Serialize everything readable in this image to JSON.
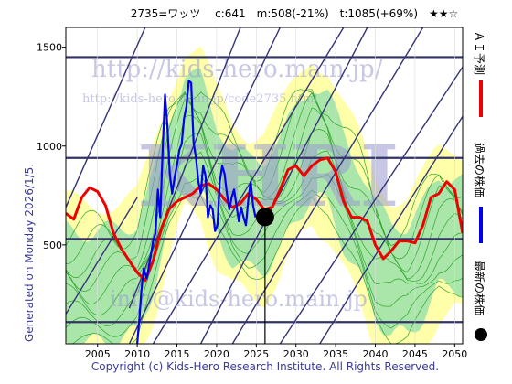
{
  "colors": {
    "plot_bg": "#ffffff",
    "band_yellow": "#ffffaa",
    "band_green": "#aae6aa",
    "band_line": "#2fa52f",
    "ai_forecast": "#ee0000",
    "past_price": "#0000ee",
    "latest_price": "#000000",
    "trend_line": "#333377",
    "grid_h": "#333366"
  },
  "chart_data": {
    "type": "line",
    "title": "2735=ワッツ　 c:641　m:508(-21%)　t:1085(+69%)　★★☆",
    "xlim": [
      2001,
      2051
    ],
    "ylim": [
      0,
      1600
    ],
    "x_ticks": [
      2005,
      2010,
      2015,
      2020,
      2025,
      2030,
      2035,
      2040,
      2045,
      2050
    ],
    "y_ticks": [
      500,
      1000,
      1500
    ],
    "hlines": [
      110,
      530,
      940,
      1450
    ],
    "legend": [
      {
        "label": "ＡＩ予測",
        "color": "#ee0000"
      },
      {
        "label": "過去の株価",
        "color": "#0000ee"
      },
      {
        "label": "最新の株価",
        "color": "#000000"
      }
    ],
    "latest": {
      "x": 2026.1,
      "y": 641
    },
    "ai_forecast": [
      [
        2001,
        660
      ],
      [
        2002,
        630
      ],
      [
        2003,
        740
      ],
      [
        2004,
        790
      ],
      [
        2005,
        770
      ],
      [
        2006,
        700
      ],
      [
        2007,
        560
      ],
      [
        2008,
        480
      ],
      [
        2009,
        420
      ],
      [
        2010,
        360
      ],
      [
        2011,
        320
      ],
      [
        2012,
        420
      ],
      [
        2013,
        580
      ],
      [
        2014,
        680
      ],
      [
        2015,
        720
      ],
      [
        2016,
        740
      ],
      [
        2017,
        760
      ],
      [
        2018,
        800
      ],
      [
        2019,
        810
      ],
      [
        2020,
        780
      ],
      [
        2021,
        730
      ],
      [
        2022,
        690
      ],
      [
        2023,
        710
      ],
      [
        2024,
        760
      ],
      [
        2025,
        730
      ],
      [
        2026,
        680
      ],
      [
        2027,
        690
      ],
      [
        2028,
        780
      ],
      [
        2029,
        880
      ],
      [
        2030,
        900
      ],
      [
        2031,
        850
      ],
      [
        2032,
        900
      ],
      [
        2033,
        930
      ],
      [
        2034,
        940
      ],
      [
        2035,
        870
      ],
      [
        2036,
        720
      ],
      [
        2037,
        640
      ],
      [
        2038,
        640
      ],
      [
        2039,
        620
      ],
      [
        2040,
        500
      ],
      [
        2041,
        430
      ],
      [
        2042,
        470
      ],
      [
        2043,
        520
      ],
      [
        2044,
        520
      ],
      [
        2045,
        510
      ],
      [
        2046,
        600
      ],
      [
        2047,
        740
      ],
      [
        2048,
        760
      ],
      [
        2049,
        820
      ],
      [
        2050,
        780
      ],
      [
        2051,
        560
      ]
    ],
    "past_price": [
      [
        2010.0,
        0
      ],
      [
        2010.3,
        140
      ],
      [
        2010.5,
        260
      ],
      [
        2010.8,
        380
      ],
      [
        2011.2,
        330
      ],
      [
        2011.6,
        420
      ],
      [
        2012.0,
        520
      ],
      [
        2012.3,
        560
      ],
      [
        2012.6,
        780
      ],
      [
        2012.9,
        640
      ],
      [
        2013.2,
        980
      ],
      [
        2013.5,
        1260
      ],
      [
        2013.8,
        1100
      ],
      [
        2014.1,
        860
      ],
      [
        2014.4,
        760
      ],
      [
        2014.7,
        840
      ],
      [
        2015.0,
        900
      ],
      [
        2015.3,
        980
      ],
      [
        2015.6,
        1010
      ],
      [
        2015.9,
        1140
      ],
      [
        2016.2,
        1200
      ],
      [
        2016.5,
        1330
      ],
      [
        2016.8,
        1320
      ],
      [
        2017.1,
        1020
      ],
      [
        2017.4,
        940
      ],
      [
        2017.7,
        820
      ],
      [
        2018.0,
        760
      ],
      [
        2018.3,
        900
      ],
      [
        2018.6,
        850
      ],
      [
        2018.9,
        640
      ],
      [
        2019.2,
        700
      ],
      [
        2019.5,
        680
      ],
      [
        2019.8,
        570
      ],
      [
        2020.1,
        600
      ],
      [
        2020.4,
        820
      ],
      [
        2020.7,
        900
      ],
      [
        2021.0,
        860
      ],
      [
        2021.3,
        760
      ],
      [
        2021.6,
        680
      ],
      [
        2021.9,
        740
      ],
      [
        2022.2,
        780
      ],
      [
        2022.5,
        700
      ],
      [
        2022.8,
        620
      ],
      [
        2023.1,
        690
      ],
      [
        2023.4,
        640
      ],
      [
        2023.7,
        600
      ],
      [
        2024.0,
        730
      ],
      [
        2024.3,
        820
      ],
      [
        2024.6,
        700
      ],
      [
        2024.9,
        640
      ]
    ],
    "band_center": [
      [
        2001,
        300
      ],
      [
        2004,
        280
      ],
      [
        2007,
        300
      ],
      [
        2010,
        330
      ],
      [
        2012,
        560
      ],
      [
        2014,
        860
      ],
      [
        2016,
        1080
      ],
      [
        2018,
        1060
      ],
      [
        2020,
        840
      ],
      [
        2022,
        700
      ],
      [
        2024,
        650
      ],
      [
        2026,
        660
      ],
      [
        2028,
        760
      ],
      [
        2030,
        900
      ],
      [
        2032,
        1040
      ],
      [
        2034,
        980
      ],
      [
        2036,
        780
      ],
      [
        2038,
        620
      ],
      [
        2040,
        420
      ],
      [
        2042,
        330
      ],
      [
        2044,
        320
      ],
      [
        2046,
        420
      ],
      [
        2048,
        560
      ],
      [
        2050,
        580
      ],
      [
        2051,
        560
      ]
    ],
    "trend_lines": [
      [
        [
          2001,
          150
        ],
        [
          2010,
          740
        ]
      ],
      [
        [
          2001,
          690
        ],
        [
          2011,
          1600
        ]
      ],
      [
        [
          2009,
          180
        ],
        [
          2023,
          1600
        ]
      ],
      [
        [
          2009,
          0
        ],
        [
          2028,
          1600
        ]
      ],
      [
        [
          2012,
          0
        ],
        [
          2036,
          1600
        ]
      ],
      [
        [
          2018,
          0
        ],
        [
          2039,
          1600
        ]
      ],
      [
        [
          2022,
          0
        ],
        [
          2046,
          1600
        ]
      ],
      [
        [
          2028,
          0
        ],
        [
          2051,
          1400
        ]
      ],
      [
        [
          2033,
          0
        ],
        [
          2051,
          1150
        ]
      ]
    ]
  },
  "labels": {
    "side_forecast": "ＡＩ予測",
    "side_past": "過去の株価",
    "side_latest": "最新の株価",
    "generated": "Generated on Monday 2026/1/5.",
    "copyright": "Copyright (c) Kids-Hero Research Institute. All Rights Reserved.",
    "watermark_main": "http://kids-hero.main.jp/",
    "watermark_code": "http://kids-hero.main.jp/code2735.html",
    "watermark_logo": "KHRI",
    "watermark_mail": "info@kids-hero.main.jp"
  }
}
